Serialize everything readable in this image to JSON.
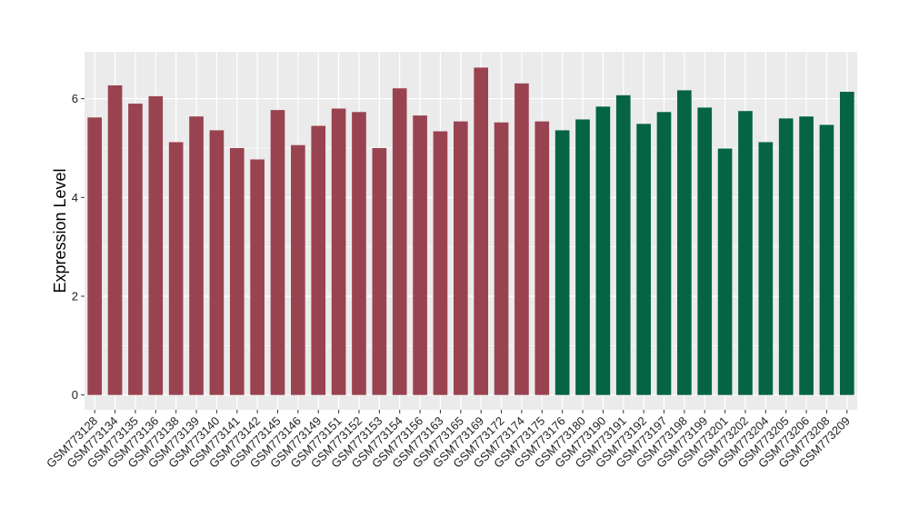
{
  "chart_data": {
    "type": "bar",
    "title": "",
    "xlabel": "",
    "ylabel": "Expression Level",
    "ylim": [
      -0.3,
      6.95
    ],
    "yticks": [
      0,
      2,
      4,
      6
    ],
    "grid": true,
    "legend": "none",
    "categories": [
      "GSM773128",
      "GSM773134",
      "GSM773135",
      "GSM773136",
      "GSM773138",
      "GSM773139",
      "GSM773140",
      "GSM773141",
      "GSM773142",
      "GSM773145",
      "GSM773146",
      "GSM773149",
      "GSM773151",
      "GSM773152",
      "GSM773153",
      "GSM773154",
      "GSM773156",
      "GSM773163",
      "GSM773165",
      "GSM773169",
      "GSM773172",
      "GSM773174",
      "GSM773175",
      "GSM773176",
      "GSM773180",
      "GSM773190",
      "GSM773191",
      "GSM773192",
      "GSM773197",
      "GSM773198",
      "GSM773199",
      "GSM773201",
      "GSM773202",
      "GSM773204",
      "GSM773205",
      "GSM773206",
      "GSM773208",
      "GSM773209"
    ],
    "series": [
      {
        "color": "#9a4350",
        "values": [
          5.62,
          6.27,
          5.9,
          6.05,
          5.12,
          5.64,
          5.36,
          5.0,
          4.77,
          5.77,
          5.06,
          5.45,
          5.8,
          5.73,
          5.0,
          6.21,
          5.66,
          5.34,
          5.54,
          6.63,
          5.52,
          6.31,
          5.54,
          null,
          null,
          null,
          null,
          null,
          null,
          null,
          null,
          null,
          null,
          null,
          null,
          null,
          null,
          null
        ]
      },
      {
        "color": "#046444",
        "values": [
          null,
          null,
          null,
          null,
          null,
          null,
          null,
          null,
          null,
          null,
          null,
          null,
          null,
          null,
          null,
          null,
          null,
          null,
          null,
          null,
          null,
          null,
          null,
          5.36,
          5.58,
          5.84,
          6.07,
          5.49,
          5.73,
          6.17,
          5.82,
          4.99,
          5.75,
          5.12,
          5.6,
          5.64,
          5.47,
          6.14
        ]
      }
    ],
    "panel_background": "#ebebeb",
    "grid_color": "#ffffff"
  }
}
